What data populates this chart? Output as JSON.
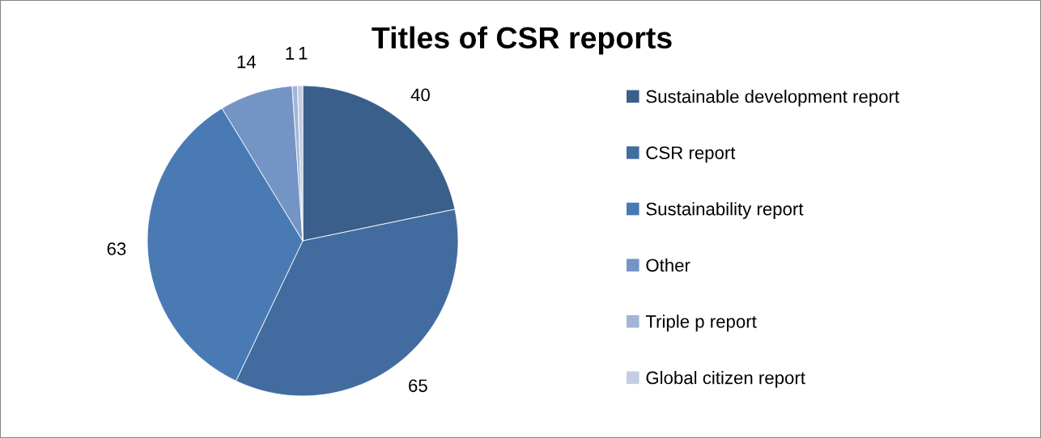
{
  "chart_data": {
    "type": "pie",
    "title": "Titles of CSR reports",
    "categories": [
      "Sustainable development report",
      "CSR report",
      "Sustainability report",
      "Other",
      "Triple p report",
      "Global citizen report"
    ],
    "values": [
      40,
      65,
      63,
      14,
      1,
      1
    ],
    "colors": [
      "#3a5f8b",
      "#426ca0",
      "#4a7ab4",
      "#7394c5",
      "#a2b5d8",
      "#c3cde5"
    ],
    "data_labels": true,
    "legend": "right"
  }
}
